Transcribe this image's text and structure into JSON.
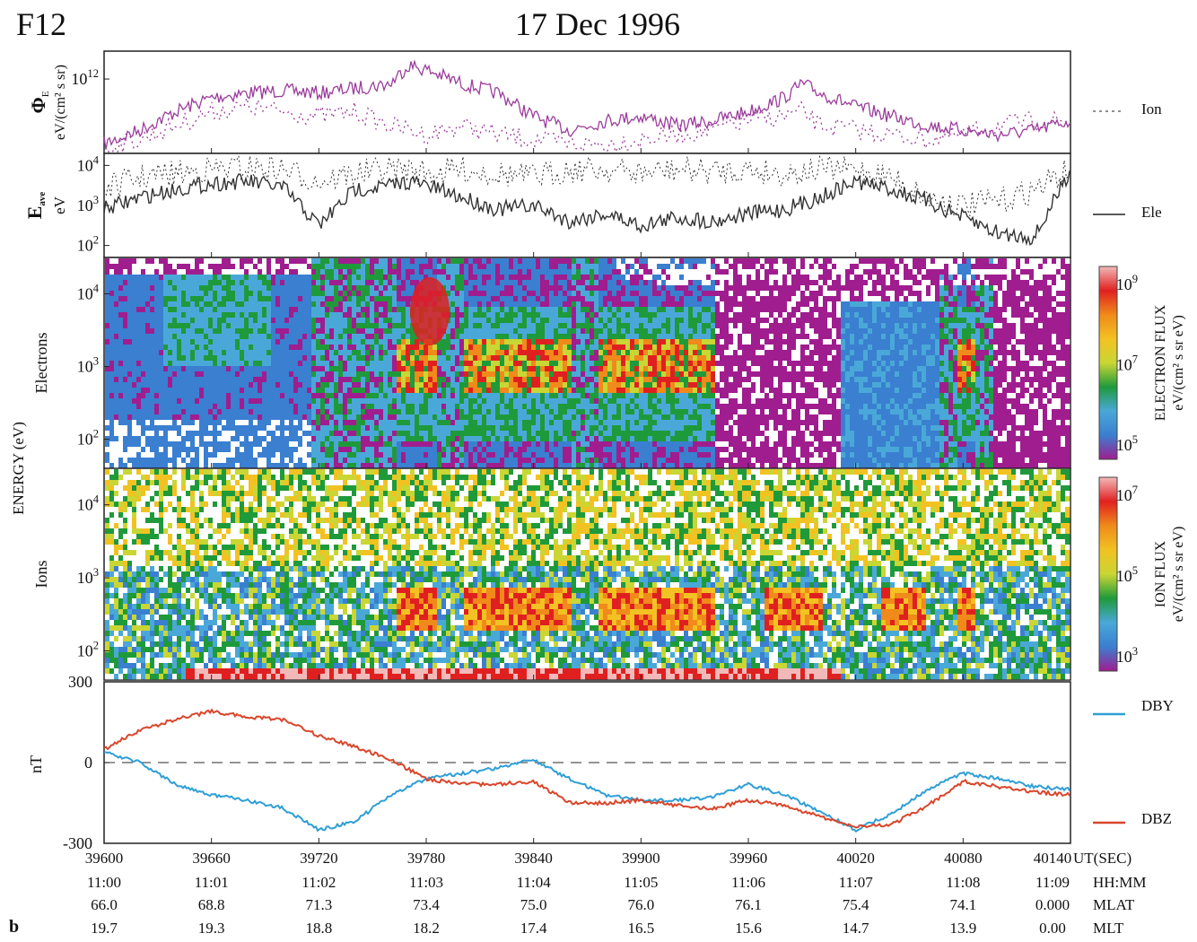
{
  "header": {
    "satellite": "F12",
    "date": "17 Dec 1996"
  },
  "panel_letter": "b",
  "colors": {
    "electron_flux_line": "#9b3d9b",
    "ion_line": "#9b3d9b",
    "eave_line": "#333333",
    "dby": "#2f9fd6",
    "dbz": "#d9462b",
    "spectro_palette": [
      "#ffffff",
      "#a01d8f",
      "#3a7fd0",
      "#4aa8d8",
      "#1f9a3b",
      "#c9d634",
      "#f2c222",
      "#f08a1a",
      "#e02020",
      "#f3b9b9"
    ]
  },
  "chart_data": [
    {
      "panel": "energy-flux",
      "type": "line",
      "ylabel_symbol": "Φ",
      "ylabel_sub": "E",
      "ylabel_units": "eV/(cm² s sr)",
      "ytick_base": "10",
      "ytick_exp": "12",
      "legend": [
        {
          "name": "Ion",
          "style": "dotted"
        }
      ],
      "x": [
        39600,
        39620,
        39640,
        39660,
        39680,
        39700,
        39720,
        39740,
        39760,
        39770,
        39780,
        39800,
        39820,
        39840,
        39860,
        39880,
        39900,
        39920,
        39940,
        39960,
        39980,
        39990,
        40000,
        40020,
        40040,
        40060,
        40080,
        40100,
        40120,
        40140
      ],
      "series": [
        {
          "style": "solid",
          "log_values": [
            10.6,
            10.9,
            11.3,
            11.6,
            11.7,
            11.75,
            11.7,
            11.8,
            11.9,
            12.3,
            12.2,
            11.9,
            11.7,
            11.2,
            10.9,
            11.1,
            11.2,
            11.0,
            11.1,
            11.3,
            11.6,
            11.9,
            11.7,
            11.4,
            11.2,
            11.0,
            10.9,
            10.8,
            10.9,
            11.1
          ]
        },
        {
          "style": "dotted",
          "log_values": [
            10.5,
            10.7,
            11.0,
            11.3,
            11.4,
            11.3,
            11.2,
            11.3,
            11.0,
            10.9,
            10.8,
            11.0,
            10.8,
            10.7,
            10.6,
            10.6,
            10.7,
            10.8,
            10.9,
            11.1,
            11.2,
            11.3,
            11.0,
            10.9,
            10.8,
            10.7,
            10.8,
            11.0,
            11.1,
            11.1
          ]
        }
      ]
    },
    {
      "panel": "average-energy",
      "type": "line",
      "ylabel_symbol": "E",
      "ylabel_sub": "ave",
      "ylabel_units": "eV",
      "ytick_base": "10",
      "ytick_exps": [
        "2",
        "3",
        "4"
      ],
      "legend": [
        {
          "name": "Ele",
          "style": "solid"
        }
      ],
      "x": [
        39600,
        39620,
        39640,
        39660,
        39680,
        39700,
        39720,
        39740,
        39760,
        39770,
        39780,
        39800,
        39820,
        39840,
        39860,
        39880,
        39900,
        39920,
        39940,
        39960,
        39980,
        40000,
        40020,
        40040,
        40060,
        40080,
        40100,
        40120,
        40140
      ],
      "series": [
        {
          "style": "solid",
          "log_values": [
            2.9,
            3.2,
            3.4,
            3.55,
            3.6,
            3.45,
            2.5,
            3.4,
            3.5,
            3.6,
            3.5,
            3.2,
            2.9,
            3.0,
            2.6,
            2.8,
            2.5,
            2.7,
            2.6,
            2.8,
            2.9,
            3.2,
            3.6,
            3.4,
            3.1,
            2.7,
            2.3,
            2.2,
            3.9
          ]
        },
        {
          "style": "dotted",
          "log_values": [
            3.4,
            3.7,
            3.8,
            3.9,
            3.95,
            3.9,
            3.6,
            3.8,
            3.9,
            3.9,
            3.8,
            3.9,
            3.8,
            3.7,
            3.9,
            3.9,
            3.8,
            3.9,
            3.85,
            3.9,
            3.8,
            3.9,
            3.9,
            3.7,
            3.2,
            3.0,
            3.1,
            3.4,
            3.9
          ]
        }
      ]
    },
    {
      "panel": "electron-spectrogram",
      "type": "heatmap",
      "ylabel": "Electrons",
      "ytick_base": "10",
      "ytick_exps": [
        "2",
        "3",
        "4"
      ],
      "colorbar_label": "ELECTRON FLUX",
      "colorbar_units": "eV/(cm² s sr eV)",
      "colorbar_tick_exps": [
        "5",
        "7",
        "9"
      ]
    },
    {
      "panel": "ion-spectrogram",
      "type": "heatmap",
      "ylabel": "Ions",
      "ytick_base": "10",
      "ytick_exps": [
        "2",
        "3",
        "4"
      ],
      "colorbar_label": "ION FLUX",
      "colorbar_units": "eV/(cm² s sr eV)",
      "colorbar_tick_exps": [
        "3",
        "5",
        "7"
      ]
    },
    {
      "panel": "magnetic-field",
      "type": "line",
      "ylabel": "nT",
      "yticks": [
        "300",
        "0",
        "-300"
      ],
      "ylim": [
        -300,
        300
      ],
      "x": [
        39600,
        39620,
        39640,
        39660,
        39680,
        39700,
        39720,
        39740,
        39760,
        39780,
        39800,
        39820,
        39840,
        39860,
        39880,
        39900,
        39920,
        39940,
        39960,
        39980,
        40000,
        40020,
        40040,
        40060,
        40080,
        40100,
        40120,
        40140
      ],
      "series": [
        {
          "name": "DBY",
          "values": [
            40,
            0,
            -80,
            -120,
            -140,
            -170,
            -250,
            -220,
            -120,
            -60,
            -40,
            -20,
            10,
            -60,
            -120,
            -140,
            -140,
            -130,
            -80,
            -120,
            -180,
            -250,
            -190,
            -100,
            -40,
            -60,
            -90,
            -100
          ]
        },
        {
          "name": "DBZ",
          "values": [
            50,
            120,
            160,
            190,
            170,
            160,
            100,
            60,
            10,
            -60,
            -80,
            -80,
            -70,
            -150,
            -150,
            -140,
            -160,
            -170,
            -140,
            -160,
            -200,
            -240,
            -230,
            -160,
            -70,
            -90,
            -110,
            -120
          ]
        }
      ]
    }
  ],
  "shared_ylabel": "ENERGY (eV)",
  "x_axis": {
    "ut_ticks": [
      "39600",
      "39660",
      "39720",
      "39780",
      "39840",
      "39900",
      "39960",
      "40020",
      "40080",
      "40140"
    ],
    "rows": [
      {
        "label": "UT(SEC)",
        "values": []
      },
      {
        "label": "HH:MM",
        "values": [
          "11:00",
          "11:01",
          "11:02",
          "11:03",
          "11:04",
          "11:05",
          "11:06",
          "11:07",
          "11:08",
          "11:09"
        ]
      },
      {
        "label": "MLAT",
        "values": [
          "66.0",
          "68.8",
          "71.3",
          "73.4",
          "75.0",
          "76.0",
          "76.1",
          "75.4",
          "74.1",
          "0.000"
        ]
      },
      {
        "label": "MLT",
        "values": [
          "19.7",
          "19.3",
          "18.8",
          "18.2",
          "17.4",
          "16.5",
          "15.6",
          "14.7",
          "13.9",
          "0.00"
        ]
      }
    ]
  }
}
